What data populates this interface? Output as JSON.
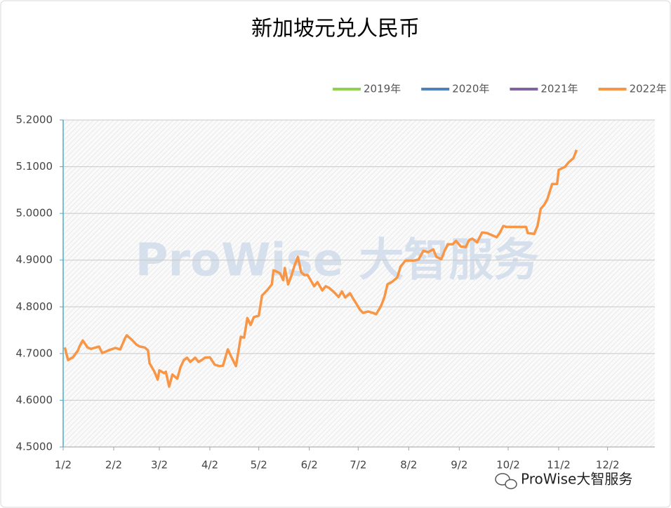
{
  "chart_data": {
    "type": "line",
    "title": "新加坡元兑人民币",
    "watermark": "ProWise 大智服务",
    "footer": "ProWise大智服务",
    "xlim": [
      2,
      365
    ],
    "xticks": [
      {
        "value": 2,
        "label": "1/2"
      },
      {
        "value": 33,
        "label": "2/2"
      },
      {
        "value": 61,
        "label": "3/2"
      },
      {
        "value": 92,
        "label": "4/2"
      },
      {
        "value": 122,
        "label": "5/2"
      },
      {
        "value": 153,
        "label": "6/2"
      },
      {
        "value": 183,
        "label": "7/2"
      },
      {
        "value": 214,
        "label": "8/2"
      },
      {
        "value": 245,
        "label": "9/2"
      },
      {
        "value": 275,
        "label": "10/2"
      },
      {
        "value": 306,
        "label": "11/2"
      },
      {
        "value": 336,
        "label": "12/2"
      }
    ],
    "ylim": [
      4.5,
      5.2
    ],
    "yticks": [
      {
        "value": 4.5,
        "label": "4.5000"
      },
      {
        "value": 4.6,
        "label": "4.6000"
      },
      {
        "value": 4.7,
        "label": "4.7000"
      },
      {
        "value": 4.8,
        "label": "4.8000"
      },
      {
        "value": 4.9,
        "label": "4.9000"
      },
      {
        "value": 5.0,
        "label": "5.0000"
      },
      {
        "value": 5.1,
        "label": "5.1000"
      },
      {
        "value": 5.2,
        "label": "5.2000"
      }
    ],
    "grid": true,
    "legend": "top-right",
    "series": [
      {
        "name": "2019年",
        "color": "#92d050",
        "x": [],
        "values": []
      },
      {
        "name": "2020年",
        "color": "#4f81bd",
        "x": [],
        "values": []
      },
      {
        "name": "2021年",
        "color": "#8064a2",
        "x": [],
        "values": []
      },
      {
        "name": "2022年",
        "color": "#f79646",
        "x": [
          3,
          5,
          8,
          11,
          12,
          14,
          17,
          19,
          24,
          26,
          30,
          34,
          37,
          40,
          41,
          44,
          47,
          49,
          52,
          54,
          55,
          58,
          60,
          61,
          64,
          65,
          67,
          69,
          72,
          74,
          76,
          78,
          80,
          83,
          85,
          87,
          89,
          92,
          95,
          98,
          100,
          103,
          105,
          108,
          111,
          113,
          115,
          117,
          119,
          122,
          124,
          127,
          130,
          131,
          132,
          135,
          137,
          138,
          140,
          142,
          144,
          146,
          148,
          150,
          152,
          154,
          156,
          158,
          161,
          163,
          165,
          168,
          171,
          173,
          175,
          178,
          180,
          182,
          184,
          186,
          189,
          192,
          194,
          197,
          199,
          201,
          204,
          207,
          209,
          212,
          215,
          217,
          220,
          223,
          226,
          229,
          231,
          234,
          236,
          238,
          241,
          243,
          246,
          249,
          251,
          253,
          256,
          259,
          262,
          264,
          268,
          270,
          272,
          274,
          280,
          286,
          287,
          291,
          293,
          295,
          297,
          299,
          302,
          305,
          306,
          310,
          312,
          315,
          317
        ],
        "values": [
          4.713,
          4.686,
          4.692,
          4.706,
          4.715,
          4.728,
          4.713,
          4.71,
          4.715,
          4.701,
          4.707,
          4.712,
          4.709,
          4.733,
          4.739,
          4.73,
          4.719,
          4.715,
          4.713,
          4.707,
          4.679,
          4.661,
          4.644,
          4.664,
          4.658,
          4.661,
          4.629,
          4.655,
          4.646,
          4.671,
          4.686,
          4.691,
          4.682,
          4.691,
          4.682,
          4.686,
          4.691,
          4.692,
          4.676,
          4.673,
          4.674,
          4.709,
          4.694,
          4.673,
          4.736,
          4.734,
          4.776,
          4.761,
          4.778,
          4.781,
          4.824,
          4.835,
          4.848,
          4.878,
          4.877,
          4.872,
          4.857,
          4.883,
          4.848,
          4.866,
          4.889,
          4.907,
          4.874,
          4.868,
          4.868,
          4.856,
          4.844,
          4.853,
          4.835,
          4.844,
          4.841,
          4.832,
          4.821,
          4.833,
          4.82,
          4.829,
          4.817,
          4.806,
          4.794,
          4.787,
          4.79,
          4.787,
          4.784,
          4.802,
          4.82,
          4.848,
          4.854,
          4.863,
          4.886,
          4.899,
          4.899,
          4.899,
          4.901,
          4.92,
          4.917,
          4.923,
          4.907,
          4.902,
          4.92,
          4.934,
          4.934,
          4.941,
          4.929,
          4.928,
          4.943,
          4.946,
          4.938,
          4.959,
          4.958,
          4.955,
          4.949,
          4.959,
          4.973,
          4.971,
          4.971,
          4.971,
          4.958,
          4.956,
          4.973,
          5.01,
          5.018,
          5.03,
          5.063,
          5.063,
          5.093,
          5.1,
          5.109,
          5.118,
          5.136
        ]
      }
    ]
  }
}
